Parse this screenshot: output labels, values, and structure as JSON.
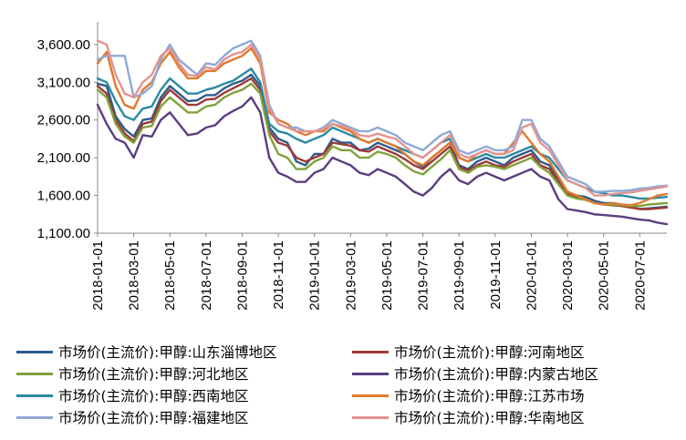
{
  "chart_data": {
    "type": "line",
    "title": "",
    "xlabel": "",
    "ylabel": "",
    "ylim": [
      1100,
      3900
    ],
    "yticks": [
      1100,
      1600,
      2100,
      2600,
      3100,
      3600
    ],
    "ytick_labels": [
      "1,100.00",
      "1,600.00",
      "2,100.00",
      "2,600.00",
      "3,100.00",
      "3,600.00"
    ],
    "xtick_labels": [
      "2018-01-01",
      "2018-03-01",
      "2018-05-01",
      "2018-07-01",
      "2018-09-01",
      "2018-11-01",
      "2019-01-01",
      "2019-03-01",
      "2019-05-01",
      "2019-07-01",
      "2019-09-01",
      "2019-11-01",
      "2020-01-01",
      "2020-03-01",
      "2020-05-01",
      "2020-07-01"
    ],
    "x_range_months": [
      0,
      31.5
    ],
    "x_points_months": [
      0,
      0.5,
      1,
      1.5,
      2,
      2.5,
      3,
      3.5,
      4,
      4.5,
      5,
      5.5,
      6,
      6.5,
      7,
      7.5,
      8,
      8.5,
      9,
      9.5,
      10,
      10.5,
      11,
      11.5,
      12,
      12.5,
      13,
      13.5,
      14,
      14.5,
      15,
      15.5,
      16,
      16.5,
      17,
      17.5,
      18,
      18.5,
      19,
      19.5,
      20,
      20.5,
      21,
      21.5,
      22,
      22.5,
      23,
      23.5,
      24,
      24.5,
      25,
      25.5,
      26,
      26.5,
      27,
      27.5,
      28,
      28.5,
      29,
      29.5,
      30,
      30.5,
      31,
      31.5
    ],
    "series": [
      {
        "name": "市场价(主流价):甲醇:山东淄博地区",
        "color": "#2e5c8c",
        "values": [
          3080,
          3050,
          2650,
          2480,
          2380,
          2600,
          2620,
          2900,
          3050,
          2950,
          2850,
          2860,
          2930,
          2930,
          3020,
          3080,
          3120,
          3200,
          3050,
          2500,
          2350,
          2300,
          2050,
          2000,
          2150,
          2150,
          2350,
          2300,
          2300,
          2200,
          2220,
          2300,
          2250,
          2200,
          2150,
          2050,
          1980,
          2100,
          2200,
          2300,
          2000,
          1950,
          2050,
          2100,
          2050,
          2000,
          2100,
          2150,
          2200,
          2050,
          2000,
          1800,
          1650,
          1600,
          1580,
          1530,
          1500,
          1500,
          1480,
          1450,
          1420,
          1430,
          1440,
          1450
        ]
      },
      {
        "name": "市场价(主流价):甲醇:河南地区",
        "color": "#9e3a36",
        "values": [
          3050,
          2950,
          2600,
          2420,
          2320,
          2550,
          2580,
          2850,
          3000,
          2900,
          2800,
          2800,
          2870,
          2880,
          2960,
          3020,
          3080,
          3150,
          3000,
          2450,
          2300,
          2260,
          2100,
          2050,
          2100,
          2150,
          2300,
          2280,
          2260,
          2200,
          2180,
          2250,
          2200,
          2150,
          2080,
          2000,
          1950,
          2050,
          2150,
          2250,
          1980,
          1930,
          2000,
          2050,
          2000,
          1980,
          2050,
          2100,
          2150,
          2000,
          1950,
          1780,
          1620,
          1580,
          1550,
          1500,
          1480,
          1470,
          1460,
          1440,
          1420,
          1420,
          1430,
          1440
        ]
      },
      {
        "name": "市场价(主流价):甲醇:河北地区",
        "color": "#7fa23c",
        "values": [
          3000,
          2900,
          2550,
          2380,
          2300,
          2500,
          2520,
          2780,
          2900,
          2800,
          2700,
          2700,
          2780,
          2800,
          2900,
          2960,
          3000,
          3080,
          2950,
          2400,
          2150,
          2100,
          1950,
          1950,
          2050,
          2100,
          2250,
          2200,
          2200,
          2100,
          2100,
          2180,
          2150,
          2100,
          2000,
          1920,
          1880,
          1980,
          2080,
          2200,
          1950,
          1900,
          1980,
          2000,
          1980,
          1950,
          2000,
          2050,
          2100,
          1980,
          1900,
          1750,
          1600,
          1560,
          1540,
          1500,
          1480,
          1480,
          1470,
          1460,
          1460,
          1480,
          1490,
          1500
        ]
      },
      {
        "name": "市场价(主流价):甲醇:内蒙古地区",
        "color": "#5b3d80",
        "values": [
          2800,
          2550,
          2350,
          2300,
          2100,
          2400,
          2380,
          2600,
          2700,
          2550,
          2400,
          2420,
          2500,
          2530,
          2650,
          2720,
          2780,
          2900,
          2700,
          2100,
          1900,
          1850,
          1780,
          1780,
          1900,
          1950,
          2100,
          2050,
          2000,
          1900,
          1870,
          1950,
          1900,
          1850,
          1750,
          1650,
          1600,
          1700,
          1850,
          1950,
          1800,
          1750,
          1850,
          1900,
          1850,
          1800,
          1850,
          1900,
          1950,
          1850,
          1800,
          1550,
          1420,
          1400,
          1380,
          1350,
          1340,
          1330,
          1320,
          1300,
          1280,
          1270,
          1240,
          1220
        ]
      },
      {
        "name": "市场价(主流价):甲醇:西南地区",
        "color": "#2a8aa3",
        "values": [
          3150,
          3100,
          2850,
          2650,
          2600,
          2750,
          2780,
          3000,
          3150,
          3050,
          2950,
          2950,
          3000,
          3030,
          3080,
          3120,
          3200,
          3280,
          3100,
          2550,
          2450,
          2420,
          2350,
          2300,
          2350,
          2400,
          2500,
          2450,
          2400,
          2350,
          2300,
          2350,
          2300,
          2250,
          2200,
          2150,
          2100,
          2200,
          2300,
          2350,
          2100,
          2050,
          2100,
          2150,
          2100,
          2100,
          2150,
          2200,
          2250,
          2150,
          2100,
          1950,
          1800,
          1750,
          1700,
          1650,
          1630,
          1600,
          1600,
          1580,
          1560,
          1560,
          1570,
          1580
        ]
      },
      {
        "name": "市场价(主流价):甲醇:江苏市场",
        "color": "#e07a2e",
        "values": [
          3350,
          3500,
          3050,
          2800,
          2750,
          3000,
          3100,
          3350,
          3500,
          3300,
          3150,
          3150,
          3250,
          3250,
          3350,
          3400,
          3450,
          3550,
          3350,
          2700,
          2600,
          2550,
          2450,
          2400,
          2450,
          2450,
          2550,
          2500,
          2450,
          2350,
          2300,
          2350,
          2300,
          2250,
          2150,
          2050,
          2000,
          2100,
          2200,
          2300,
          2100,
          2050,
          2150,
          2200,
          2150,
          2150,
          2300,
          2450,
          2300,
          2150,
          2050,
          1850,
          1650,
          1600,
          1550,
          1500,
          1480,
          1500,
          1480,
          1470,
          1500,
          1550,
          1600,
          1620
        ]
      },
      {
        "name": "市场价(主流价):甲醇:福建地区",
        "color": "#8ea9d6",
        "values": [
          3400,
          3450,
          3450,
          3450,
          2900,
          2950,
          3050,
          3400,
          3600,
          3400,
          3300,
          3200,
          3350,
          3330,
          3450,
          3550,
          3600,
          3650,
          3450,
          2800,
          2550,
          2500,
          2500,
          2450,
          2450,
          2500,
          2600,
          2550,
          2500,
          2450,
          2450,
          2500,
          2450,
          2400,
          2300,
          2250,
          2200,
          2300,
          2400,
          2450,
          2200,
          2150,
          2200,
          2250,
          2200,
          2200,
          2250,
          2600,
          2600,
          2350,
          2250,
          2050,
          1850,
          1800,
          1750,
          1650,
          1650,
          1660,
          1660,
          1670,
          1690,
          1700,
          1720,
          1730
        ]
      },
      {
        "name": "市场价(主流价):甲醇:华南地区",
        "color": "#e49490",
        "values": [
          3650,
          3600,
          3200,
          2950,
          2900,
          3100,
          3200,
          3450,
          3550,
          3350,
          3200,
          3180,
          3300,
          3270,
          3400,
          3470,
          3500,
          3600,
          3400,
          2750,
          2550,
          2500,
          2450,
          2450,
          2450,
          2480,
          2550,
          2520,
          2480,
          2400,
          2380,
          2420,
          2380,
          2350,
          2250,
          2150,
          2100,
          2200,
          2300,
          2400,
          2150,
          2100,
          2150,
          2200,
          2150,
          2150,
          2200,
          2500,
          2550,
          2300,
          2200,
          2000,
          1800,
          1750,
          1700,
          1600,
          1600,
          1620,
          1630,
          1640,
          1660,
          1680,
          1700,
          1720
        ]
      }
    ]
  }
}
